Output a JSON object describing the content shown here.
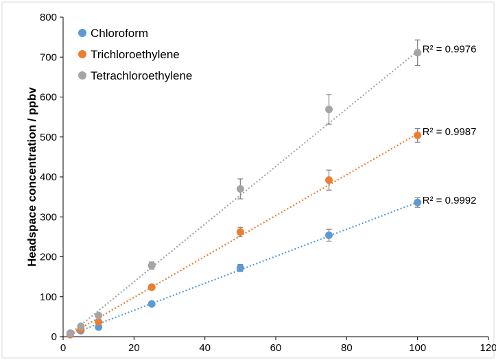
{
  "chart_data": {
    "type": "scatter",
    "title": "",
    "xlabel": "",
    "ylabel": "Headspace concentration / ppbv",
    "xlim": [
      0,
      120
    ],
    "ylim": [
      0,
      800
    ],
    "xticks": [
      0,
      20,
      40,
      60,
      80,
      100,
      120
    ],
    "yticks": [
      0,
      100,
      200,
      300,
      400,
      500,
      600,
      700,
      800
    ],
    "grid": false,
    "legend_position": "top-left",
    "series": [
      {
        "name": "Chloroform",
        "color": "#5b9bd5",
        "x": [
          2,
          5,
          10,
          25,
          50,
          75,
          100
        ],
        "y": [
          5,
          15,
          24,
          82,
          172,
          254,
          336
        ],
        "error": [
          2,
          3,
          4,
          5,
          9,
          15,
          12
        ],
        "trendline": {
          "slope": 3.38,
          "intercept": -1.5
        },
        "r2_label": "R² = 0.9992"
      },
      {
        "name": "Trichloroethylene",
        "color": "#ed7d31",
        "x": [
          2,
          5,
          10,
          25,
          50,
          75,
          100
        ],
        "y": [
          6,
          18,
          37,
          124,
          262,
          392,
          504
        ],
        "error": [
          2,
          3,
          4,
          7,
          12,
          25,
          17
        ],
        "trendline": {
          "slope": 5.12,
          "intercept": -4
        },
        "r2_label": "R² = 0.9987"
      },
      {
        "name": "Tetrachloroethylene",
        "color": "#a5a5a5",
        "x": [
          2,
          5,
          10,
          25,
          50,
          75,
          100
        ],
        "y": [
          9,
          26,
          53,
          178,
          370,
          569,
          711
        ],
        "error": [
          3,
          4,
          5,
          9,
          25,
          37,
          32
        ],
        "trendline": {
          "slope": 7.22,
          "intercept": -7
        },
        "r2_label": "R² = 0.9976"
      }
    ]
  }
}
